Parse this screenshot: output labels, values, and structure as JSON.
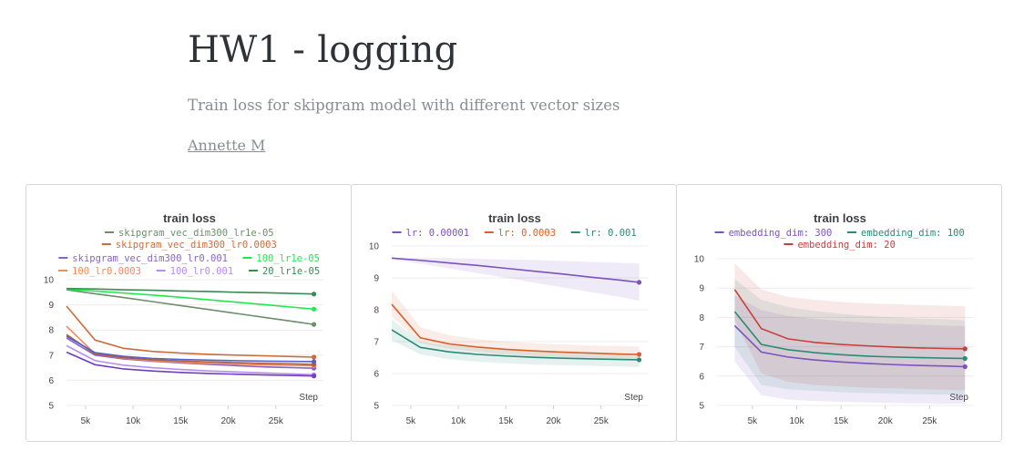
{
  "report": {
    "title": "HW1 - logging",
    "description": "Train loss for skipgram model with different vector sizes",
    "author": "Annette M"
  },
  "chart_data": [
    {
      "type": "line",
      "title": "train loss",
      "xlabel": "Step",
      "ylabel": "",
      "xlim": [
        3000,
        30000
      ],
      "ylim": [
        5,
        10
      ],
      "xticks": [
        5000,
        10000,
        15000,
        20000,
        25000
      ],
      "xtick_labels": [
        "5k",
        "10k",
        "15k",
        "20k",
        "25k"
      ],
      "yticks": [
        5,
        6,
        7,
        8,
        9,
        10
      ],
      "legend_rows": [
        [
          0
        ],
        [
          1
        ],
        [
          2,
          3
        ],
        [
          4,
          5,
          6
        ]
      ],
      "series": [
        {
          "name": "skipgram_vec_dim300_lr1e-05",
          "color": "#6b8f6b",
          "x": [
            3000,
            6000,
            9000,
            12000,
            15000,
            18000,
            21000,
            24000,
            27000,
            29000
          ],
          "y": [
            9.6,
            9.44,
            9.29,
            9.13,
            8.97,
            8.81,
            8.65,
            8.49,
            8.33,
            8.22
          ]
        },
        {
          "name": "skipgram_vec_dim300_lr0.0003",
          "color": "#cd6c3a",
          "x": [
            3000,
            6000,
            9000,
            12000,
            15000,
            18000,
            21000,
            24000,
            27000,
            29000
          ],
          "y": [
            8.95,
            7.6,
            7.27,
            7.15,
            7.08,
            7.03,
            7.0,
            6.97,
            6.94,
            6.92
          ]
        },
        {
          "name": "skipgram_vec_dim300_lr0.001",
          "color": "#8a63c7",
          "x": [
            3000,
            6000,
            9000,
            12000,
            15000,
            18000,
            21000,
            24000,
            27000,
            29000
          ],
          "y": [
            7.68,
            7.0,
            6.85,
            6.76,
            6.69,
            6.63,
            6.58,
            6.53,
            6.5,
            6.48
          ]
        },
        {
          "name": "100_lr1e-05",
          "color": "#1eea4f",
          "x": [
            3000,
            6000,
            9000,
            12000,
            15000,
            18000,
            21000,
            24000,
            27000,
            29000
          ],
          "y": [
            9.62,
            9.55,
            9.47,
            9.39,
            9.3,
            9.2,
            9.1,
            9.0,
            8.9,
            8.83
          ]
        },
        {
          "name": "100_lr0.0003",
          "color": "#ee8a5c",
          "x": [
            3000,
            6000,
            9000,
            12000,
            15000,
            18000,
            21000,
            24000,
            27000,
            29000
          ],
          "y": [
            8.15,
            7.05,
            6.88,
            6.78,
            6.72,
            6.67,
            6.64,
            6.61,
            6.59,
            6.58
          ]
        },
        {
          "name": "100_lr0.001",
          "color": "#b58df0",
          "x": [
            3000,
            6000,
            9000,
            12000,
            15000,
            18000,
            21000,
            24000,
            27000,
            29000
          ],
          "y": [
            7.38,
            6.78,
            6.6,
            6.5,
            6.43,
            6.37,
            6.33,
            6.29,
            6.25,
            6.22
          ]
        },
        {
          "name": "20_lr1e-05",
          "color": "#3b8a54",
          "x": [
            3000,
            6000,
            9000,
            12000,
            15000,
            18000,
            21000,
            24000,
            27000,
            29000
          ],
          "y": [
            9.65,
            9.63,
            9.6,
            9.58,
            9.55,
            9.53,
            9.5,
            9.48,
            9.45,
            9.43
          ]
        },
        {
          "name": "",
          "color": "#b15c3a",
          "x": [
            3000,
            6000,
            9000,
            12000,
            15000,
            18000,
            21000,
            24000,
            27000,
            29000
          ],
          "y": [
            7.82,
            7.05,
            6.9,
            6.82,
            6.77,
            6.73,
            6.7,
            6.67,
            6.65,
            6.63
          ]
        },
        {
          "name": "",
          "color": "#6f3fbf",
          "x": [
            3000,
            6000,
            9000,
            12000,
            15000,
            18000,
            21000,
            24000,
            27000,
            29000
          ],
          "y": [
            7.12,
            6.62,
            6.45,
            6.37,
            6.31,
            6.27,
            6.24,
            6.21,
            6.19,
            6.17
          ]
        },
        {
          "name": "",
          "color": "#5560c9",
          "x": [
            3000,
            6000,
            9000,
            12000,
            15000,
            18000,
            21000,
            24000,
            27000,
            29000
          ],
          "y": [
            7.75,
            7.1,
            6.95,
            6.87,
            6.83,
            6.8,
            6.78,
            6.76,
            6.75,
            6.74
          ]
        }
      ]
    },
    {
      "type": "line",
      "title": "train loss",
      "xlabel": "Step",
      "ylabel": "",
      "xlim": [
        3000,
        30000
      ],
      "ylim": [
        5,
        10
      ],
      "xticks": [
        5000,
        10000,
        15000,
        20000,
        25000
      ],
      "xtick_labels": [
        "5k",
        "10k",
        "15k",
        "20k",
        "25k"
      ],
      "yticks": [
        5,
        6,
        7,
        8,
        9,
        10
      ],
      "legend_rows": [
        [
          0,
          1,
          2
        ]
      ],
      "series": [
        {
          "name": "lr: 0.00001",
          "color": "#7c52bd",
          "x": [
            3000,
            6000,
            9000,
            12000,
            15000,
            18000,
            21000,
            24000,
            27000,
            29000
          ],
          "y": [
            9.62,
            9.55,
            9.47,
            9.39,
            9.3,
            9.21,
            9.12,
            9.02,
            8.93,
            8.86
          ],
          "band_low": [
            9.58,
            9.45,
            9.3,
            9.15,
            9.0,
            8.85,
            8.7,
            8.55,
            8.4,
            8.28
          ],
          "band_high": [
            9.64,
            9.63,
            9.62,
            9.6,
            9.58,
            9.56,
            9.53,
            9.5,
            9.47,
            9.45
          ]
        },
        {
          "name": "lr: 0.0003",
          "color": "#d7612e",
          "x": [
            3000,
            6000,
            9000,
            12000,
            15000,
            18000,
            21000,
            24000,
            27000,
            29000
          ],
          "y": [
            8.17,
            7.12,
            6.93,
            6.83,
            6.76,
            6.71,
            6.67,
            6.64,
            6.61,
            6.6
          ],
          "band_low": [
            7.8,
            6.95,
            6.78,
            6.68,
            6.6,
            6.55,
            6.52,
            6.49,
            6.47,
            6.45
          ],
          "band_high": [
            8.6,
            7.45,
            7.2,
            7.08,
            7.0,
            6.95,
            6.91,
            6.88,
            6.86,
            6.85
          ]
        },
        {
          "name": "lr: 0.001",
          "color": "#2a8a78",
          "x": [
            3000,
            6000,
            9000,
            12000,
            15000,
            18000,
            21000,
            24000,
            27000,
            29000
          ],
          "y": [
            7.37,
            6.82,
            6.68,
            6.6,
            6.55,
            6.51,
            6.48,
            6.46,
            6.44,
            6.43
          ],
          "band_low": [
            7.05,
            6.6,
            6.45,
            6.37,
            6.32,
            6.28,
            6.26,
            6.24,
            6.22,
            6.2
          ],
          "band_high": [
            7.7,
            7.0,
            6.88,
            6.8,
            6.75,
            6.7,
            6.68,
            6.66,
            6.64,
            6.63
          ]
        }
      ]
    },
    {
      "type": "line",
      "title": "train loss",
      "xlabel": "Step",
      "ylabel": "",
      "xlim": [
        1000,
        30000
      ],
      "ylim": [
        5,
        10
      ],
      "xticks": [
        5000,
        10000,
        15000,
        20000,
        25000
      ],
      "xtick_labels": [
        "5k",
        "10k",
        "15k",
        "20k",
        "25k"
      ],
      "yticks": [
        5,
        6,
        7,
        8,
        9,
        10
      ],
      "legend_rows": [
        [
          0,
          1
        ],
        [
          2
        ]
      ],
      "series": [
        {
          "name": "embedding_dim: 300",
          "color": "#7c52bd",
          "x": [
            3000,
            6000,
            9000,
            12000,
            15000,
            18000,
            21000,
            24000,
            27000,
            29000
          ],
          "y": [
            7.72,
            6.82,
            6.65,
            6.55,
            6.48,
            6.43,
            6.39,
            6.36,
            6.34,
            6.32
          ],
          "band_low": [
            6.5,
            5.35,
            5.2,
            5.15,
            5.12,
            5.1,
            5.08,
            5.07,
            5.06,
            5.06
          ],
          "band_high": [
            8.75,
            8.25,
            8.05,
            7.95,
            7.88,
            7.82,
            7.78,
            7.75,
            7.72,
            7.7
          ]
        },
        {
          "name": "embedding_dim: 100",
          "color": "#2a8a78",
          "x": [
            3000,
            6000,
            9000,
            12000,
            15000,
            18000,
            21000,
            24000,
            27000,
            29000
          ],
          "y": [
            8.2,
            7.08,
            6.9,
            6.8,
            6.73,
            6.68,
            6.65,
            6.63,
            6.61,
            6.6
          ],
          "band_low": [
            7.0,
            5.7,
            5.55,
            5.5,
            5.45,
            5.42,
            5.4,
            5.38,
            5.37,
            5.36
          ],
          "band_high": [
            9.3,
            8.6,
            8.35,
            8.22,
            8.12,
            8.05,
            8.0,
            7.96,
            7.93,
            7.9
          ]
        },
        {
          "name": "embedding_dim: 20",
          "color": "#c7403c",
          "x": [
            3000,
            6000,
            9000,
            12000,
            15000,
            18000,
            21000,
            24000,
            27000,
            29000
          ],
          "y": [
            8.95,
            7.62,
            7.27,
            7.15,
            7.08,
            7.03,
            6.99,
            6.96,
            6.94,
            6.93
          ],
          "band_low": [
            7.9,
            6.1,
            5.8,
            5.7,
            5.65,
            5.6,
            5.58,
            5.55,
            5.53,
            5.52
          ],
          "band_high": [
            9.85,
            8.95,
            8.7,
            8.6,
            8.53,
            8.48,
            8.45,
            8.42,
            8.4,
            8.38
          ]
        }
      ]
    }
  ]
}
